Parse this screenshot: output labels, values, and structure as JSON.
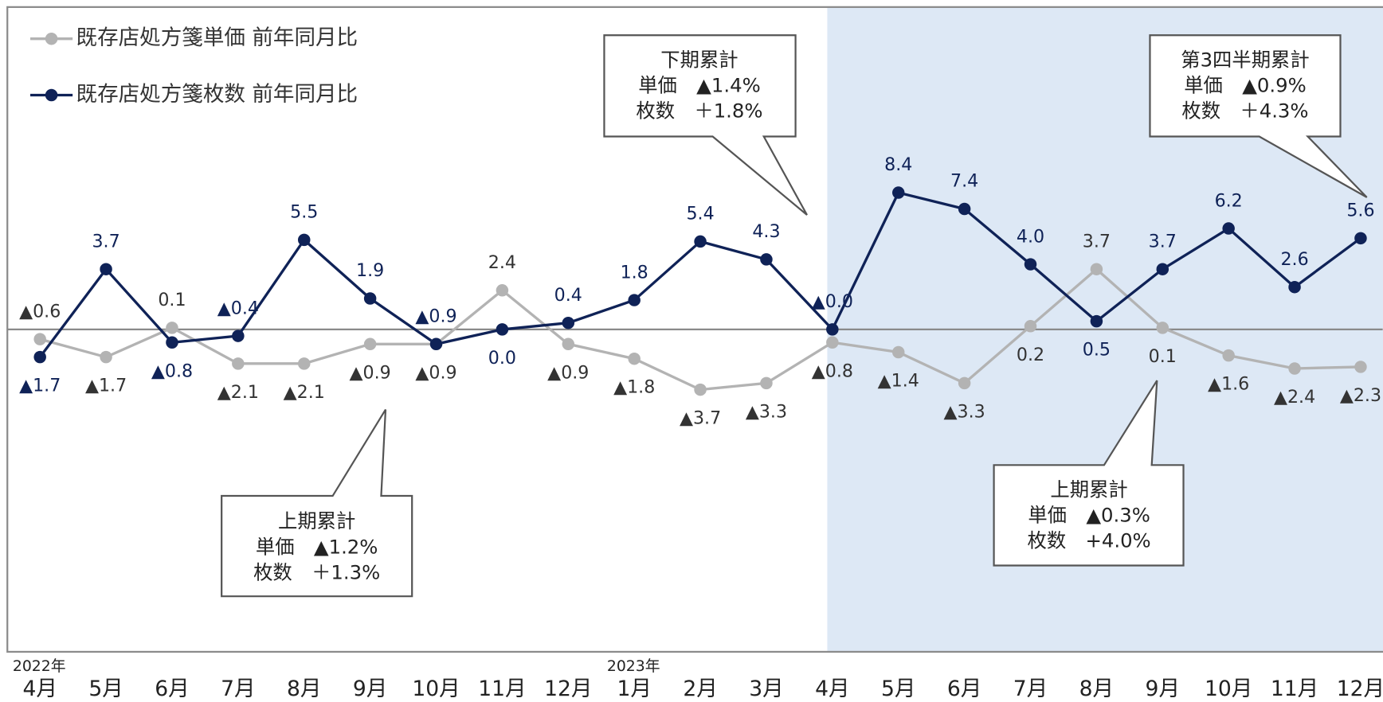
{
  "chart_data": {
    "type": "line",
    "categories": [
      "4月",
      "5月",
      "6月",
      "7月",
      "8月",
      "9月",
      "10月",
      "11月",
      "12月",
      "1月",
      "2月",
      "3月",
      "4月",
      "5月",
      "6月",
      "7月",
      "8月",
      "9月",
      "10月",
      "11月",
      "12月"
    ],
    "year_labels": [
      {
        "index": 0,
        "label": "2022年"
      },
      {
        "index": 9,
        "label": "2023年"
      }
    ],
    "ylim": [
      -19.8,
      19.8
    ],
    "series": [
      {
        "name": "既存店処方箋単価 前年同月比",
        "color": "#b3b3b3",
        "values": [
          -0.6,
          -1.7,
          0.1,
          -2.1,
          -2.1,
          -0.9,
          -0.9,
          2.4,
          -0.9,
          -1.8,
          -3.7,
          -3.3,
          -0.8,
          -1.4,
          -3.3,
          0.2,
          3.7,
          0.1,
          -1.6,
          -2.4,
          -2.3
        ],
        "value_labels": [
          "▲0.6",
          "▲1.7",
          "0.1",
          "▲2.1",
          "▲2.1",
          "▲0.9",
          "▲0.9",
          "2.4",
          "▲0.9",
          "▲1.8",
          "▲3.7",
          "▲3.3",
          "▲0.8",
          "▲1.4",
          "▲3.3",
          "0.2",
          "3.7",
          "0.1",
          "▲1.6",
          "▲2.4",
          "▲2.3"
        ]
      },
      {
        "name": "既存店処方箋枚数 前年同月比",
        "color": "#0f2257",
        "values": [
          -1.7,
          3.7,
          -0.8,
          -0.4,
          5.5,
          1.9,
          -0.9,
          0.0,
          0.4,
          1.8,
          5.4,
          4.3,
          0.0,
          8.4,
          7.4,
          4.0,
          0.5,
          3.7,
          6.2,
          2.6,
          5.6
        ],
        "value_labels": [
          "▲1.7",
          "3.7",
          "▲0.8",
          "▲0.4",
          "5.5",
          "1.9",
          "▲0.9",
          "0.0",
          "0.4",
          "1.8",
          "5.4",
          "4.3",
          "▲0.0",
          "8.4",
          "7.4",
          "4.0",
          "0.5",
          "3.7",
          "6.2",
          "2.6",
          "5.6"
        ]
      }
    ],
    "annotations": [
      {
        "lines": [
          "上期累計",
          "単価　▲1.2%",
          "枚数　＋1.3%"
        ]
      },
      {
        "lines": [
          "下期累計",
          "単価　▲1.4%",
          "枚数　＋1.8%"
        ]
      },
      {
        "lines": [
          "第3四半期累計",
          "単価　▲0.9%",
          "枚数　＋4.3%"
        ]
      },
      {
        "lines": [
          "上期累計",
          "単価　▲0.3%",
          "枚数　+4.0%"
        ]
      }
    ]
  }
}
